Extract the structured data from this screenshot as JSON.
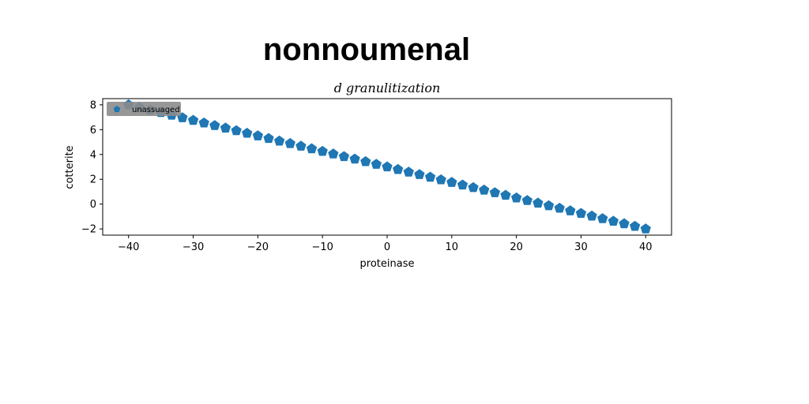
{
  "figure_title": "nonnoumenal",
  "chart_data": {
    "type": "scatter",
    "title": "d granulitization",
    "xlabel": "proteinase",
    "ylabel": "cotterite",
    "xlim": [
      -44,
      44
    ],
    "ylim": [
      -2.5,
      8.5
    ],
    "xticks": [
      -40,
      -30,
      -20,
      -10,
      0,
      10,
      20,
      30,
      40
    ],
    "yticks": [
      -2,
      0,
      2,
      4,
      6,
      8
    ],
    "grid": false,
    "legend_position": "top-left",
    "marker": "pentagon",
    "series": [
      {
        "name": "unassuaged",
        "color": "#1f77b4",
        "x": [
          -40,
          -38.33,
          -36.67,
          -35,
          -33.33,
          -31.67,
          -30,
          -28.33,
          -26.67,
          -25,
          -23.33,
          -21.67,
          -20,
          -18.33,
          -16.67,
          -15,
          -13.33,
          -11.67,
          -10,
          -8.33,
          -6.67,
          -5,
          -3.33,
          -1.67,
          0,
          1.67,
          3.33,
          5,
          6.67,
          8.33,
          10,
          11.67,
          13.33,
          15,
          16.67,
          18.33,
          20,
          21.67,
          23.33,
          25,
          26.67,
          28.33,
          30,
          31.67,
          33.33,
          35,
          36.67,
          38.33,
          40
        ],
        "y": [
          8,
          7.79,
          7.58,
          7.38,
          7.17,
          6.96,
          6.75,
          6.54,
          6.33,
          6.13,
          5.92,
          5.71,
          5.5,
          5.29,
          5.08,
          4.88,
          4.67,
          4.46,
          4.25,
          4.04,
          3.83,
          3.63,
          3.42,
          3.21,
          3,
          2.79,
          2.58,
          2.38,
          2.17,
          1.96,
          1.75,
          1.54,
          1.33,
          1.13,
          0.92,
          0.71,
          0.5,
          0.29,
          0.08,
          -0.13,
          -0.33,
          -0.54,
          -0.75,
          -0.96,
          -1.17,
          -1.38,
          -1.58,
          -1.79,
          -2
        ]
      }
    ]
  }
}
